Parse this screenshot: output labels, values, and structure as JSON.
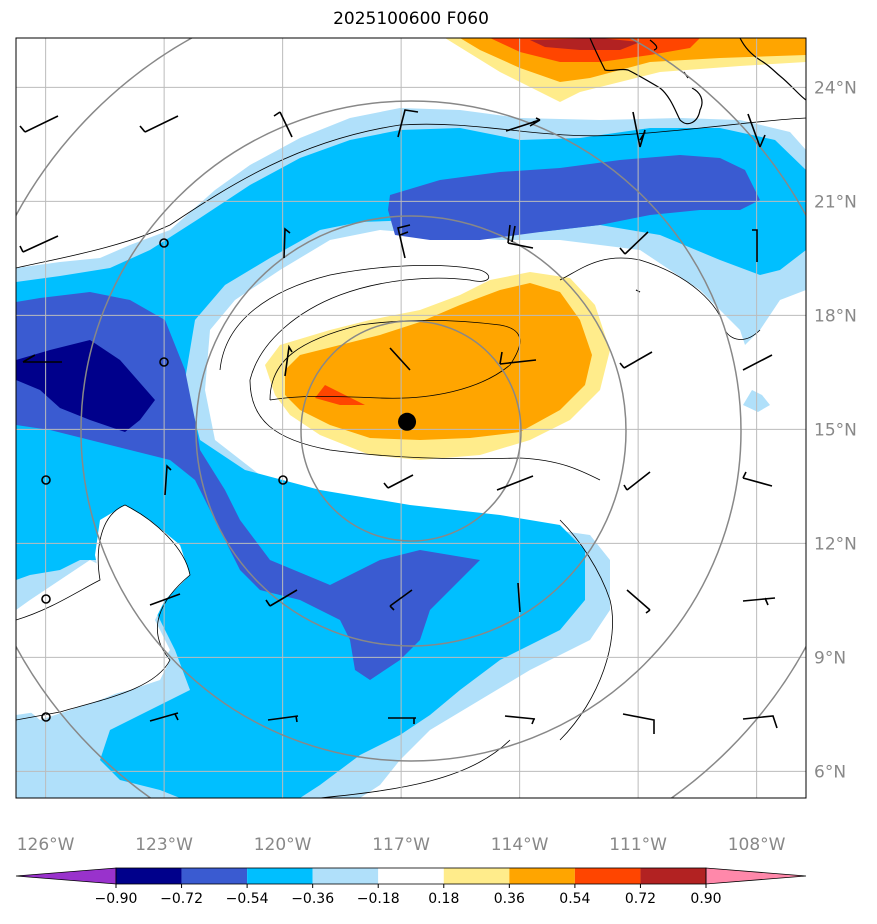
{
  "title": "2025100600 F060",
  "map": {
    "lon_range": [
      -126.75,
      -106.75
    ],
    "lat_range": [
      5.3,
      25.3
    ],
    "lat_labels": [
      "6°N",
      "9°N",
      "12°N",
      "15°N",
      "18°N",
      "21°N",
      "24°N"
    ],
    "lat_values": [
      6,
      9,
      12,
      15,
      18,
      21,
      24
    ],
    "lon_labels": [
      "126°W",
      "123°W",
      "120°W",
      "117°W",
      "114°W",
      "111°W",
      "108°W"
    ],
    "lon_values": [
      -126,
      -123,
      -120,
      -117,
      -114,
      -111,
      -108
    ],
    "center_marker": {
      "lon": -116.85,
      "lat": 15.2
    },
    "grid": true
  },
  "colorbar": {
    "colors": [
      "#9932cc",
      "#00008b",
      "#3a5bd1",
      "#00bfff",
      "#b0e0fa",
      "#ffffff",
      "#ffec8b",
      "#ffa500",
      "#ff4500",
      "#b22222",
      "#ff88aa"
    ],
    "tick_labels": [
      "−0.90",
      "−0.72",
      "−0.54",
      "−0.36",
      "−0.18",
      "0.18",
      "0.36",
      "0.54",
      "0.72",
      "0.90"
    ],
    "ticks": [
      -0.9,
      -0.72,
      -0.54,
      -0.36,
      -0.18,
      0.18,
      0.36,
      0.54,
      0.72,
      0.9
    ]
  },
  "colors": {
    "dark_blue": "#00008b",
    "royal_blue": "#3a5bd1",
    "deep_sky": "#00bfff",
    "light_blue": "#b0e0fa",
    "light_yellow": "#ffec8b",
    "orange": "#ffa500",
    "orange_red": "#ff4500",
    "firebrick": "#b22222",
    "grid": "#bbbbbb",
    "circle": "#888888"
  }
}
